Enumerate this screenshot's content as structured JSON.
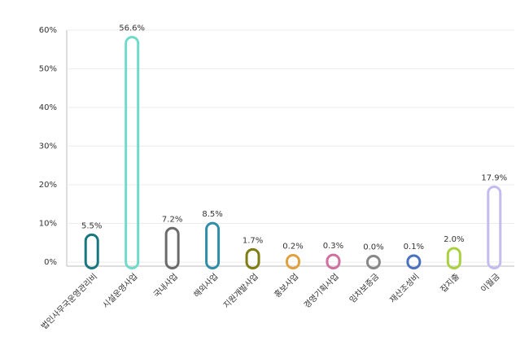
{
  "chart_data": {
    "type": "bar",
    "categories": [
      "법인사무국운영관리비",
      "시설운영사업",
      "국내사업",
      "해외사업",
      "지원개발사업",
      "홍보사업",
      "경영기획사업",
      "임차보증금",
      "재산조성비",
      "잡지출",
      "이월금"
    ],
    "values": [
      5.5,
      56.6,
      7.2,
      8.5,
      1.7,
      0.2,
      0.3,
      0.0,
      0.1,
      2.0,
      17.9
    ],
    "value_labels": [
      "5.5%",
      "56.6%",
      "7.2%",
      "8.5%",
      "1.7%",
      "0.2%",
      "0.3%",
      "0.0%",
      "0.1%",
      "2.0%",
      "17.9%"
    ],
    "colors": [
      "#17777f",
      "#6fdaca",
      "#6b6b6b",
      "#2e8ea8",
      "#7f7c12",
      "#e0a040",
      "#d070a0",
      "#888888",
      "#4a70c0",
      "#a9d03f",
      "#c3bcef"
    ],
    "ylim": [
      0,
      60
    ],
    "yticks": [
      {
        "value": 0,
        "label": "0%"
      },
      {
        "value": 10,
        "label": "10%"
      },
      {
        "value": 20,
        "label": "20%"
      },
      {
        "value": 30,
        "label": "30%"
      },
      {
        "value": 40,
        "label": "40%"
      },
      {
        "value": 50,
        "label": "50%"
      },
      {
        "value": 60,
        "label": "60%"
      }
    ],
    "grid": true
  }
}
